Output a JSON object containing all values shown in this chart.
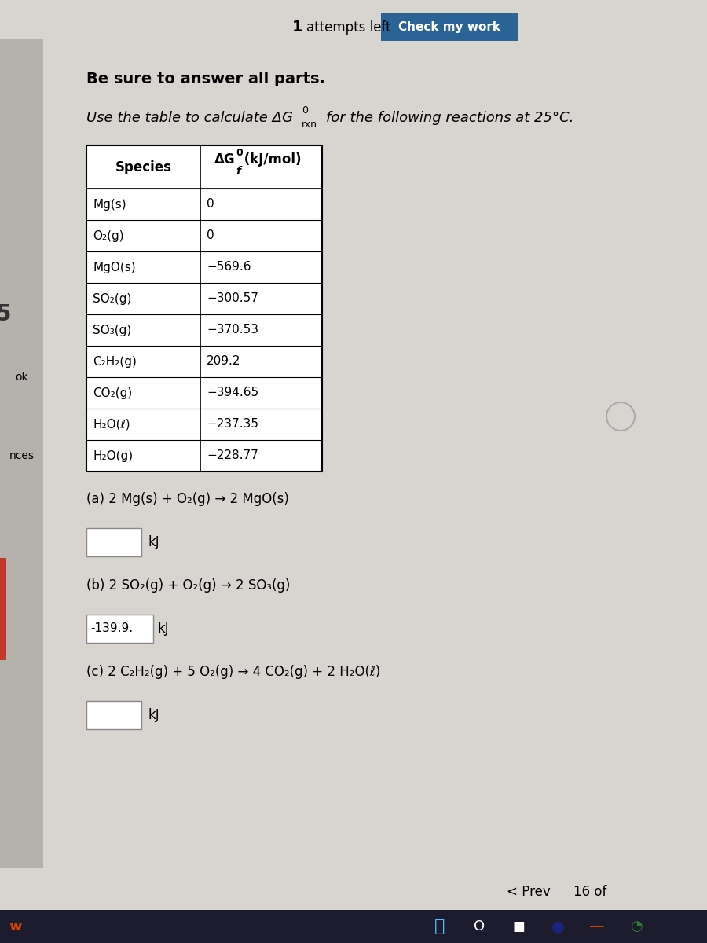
{
  "bg_color": "#ccc9c4",
  "content_bg": "#d8d5d0",
  "white": "#ffffff",
  "btn_color": "#2a6496",
  "btn_text": "Check my work",
  "sidebar_color": "#b8b4af",
  "red_bar_color": "#c0392b",
  "taskbar_color": "#1c1c2e",
  "table_data": [
    [
      "Mg(s)",
      "0"
    ],
    [
      "O₂(g)",
      "0"
    ],
    [
      "MgO(s)",
      "−569.6"
    ],
    [
      "SO₂(g)",
      "−300.57"
    ],
    [
      "SO₃(g)",
      "−370.53"
    ],
    [
      "C₂H₂(g)",
      "209.2"
    ],
    [
      "CO₂(g)",
      "−394.65"
    ],
    [
      "H₂O(ℓ)",
      "−237.35"
    ],
    [
      "H₂O(g)",
      "−228.77"
    ]
  ],
  "rxn_a": "(a) 2 Mg(s) + O₂(g) → 2 MgO(s)",
  "rxn_b": "(b) 2 SO₂(g) + O₂(g) → 2 SO₃(g)",
  "rxn_b_answer": "-139.9.",
  "rxn_c": "(c) 2 C₂H₂(g) + 5 O₂(g) → 4 CO₂(g) + 2 H₂O(ℓ)",
  "sidebar_texts": [
    [
      "ok",
      0.62
    ],
    [
      "nces",
      0.52
    ]
  ],
  "nav_prev": "< Prev",
  "nav_page": "16 of"
}
